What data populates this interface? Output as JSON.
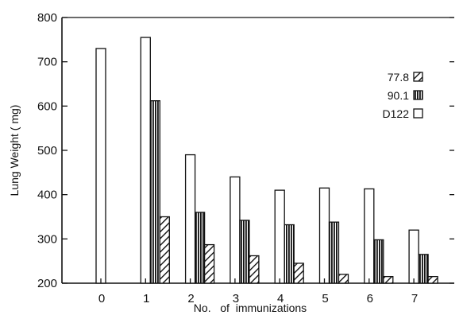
{
  "chart_data": {
    "type": "bar",
    "xlabel": "No.   of  immunizations",
    "ylabel": "Lung Weight ( mg)",
    "ylim": [
      200,
      800
    ],
    "yticks": [
      200,
      300,
      400,
      500,
      600,
      700,
      800
    ],
    "categories": [
      "0",
      "1",
      "2",
      "3",
      "4",
      "5",
      "6",
      "7"
    ],
    "series": [
      {
        "name": "D122",
        "pattern": "open",
        "values": [
          730,
          755,
          490,
          440,
          410,
          415,
          413,
          320
        ]
      },
      {
        "name": "90.1",
        "pattern": "vertical-lines",
        "values": [
          null,
          612,
          360,
          342,
          332,
          338,
          298,
          265
        ]
      },
      {
        "name": "77.8",
        "pattern": "diagonal-hatch",
        "values": [
          null,
          350,
          287,
          262,
          245,
          220,
          215,
          215
        ]
      }
    ],
    "legend": {
      "position": "right",
      "entries": [
        "77.8",
        "90.1",
        "D122"
      ]
    },
    "grid": false
  }
}
